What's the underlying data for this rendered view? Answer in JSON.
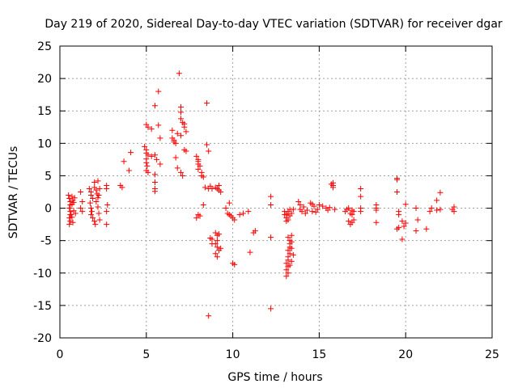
{
  "chart_data": {
    "type": "scatter",
    "title": "Day 219 of 2020, Sidereal Day-to-day VTEC variation (SDTVAR) for receiver dgar",
    "xlabel": "GPS time / hours",
    "ylabel": "SDTVAR / TECUs",
    "xlim": [
      0,
      25
    ],
    "ylim": [
      -20,
      25
    ],
    "xticks": [
      0,
      5,
      10,
      15,
      20,
      25
    ],
    "yticks": [
      -20,
      -15,
      -10,
      -5,
      0,
      5,
      10,
      15,
      20,
      25
    ],
    "grid": true,
    "marker": "+",
    "color": "#ff0000",
    "series": [
      {
        "name": "SDTVAR",
        "points": [
          [
            0.5,
            2.0
          ],
          [
            0.55,
            1.5
          ],
          [
            0.6,
            1.0
          ],
          [
            0.6,
            0.5
          ],
          [
            0.55,
            0.0
          ],
          [
            0.6,
            -0.5
          ],
          [
            0.6,
            -1.0
          ],
          [
            0.55,
            -1.5
          ],
          [
            0.6,
            -2.0
          ],
          [
            0.55,
            -2.5
          ],
          [
            0.65,
            -1.0
          ],
          [
            0.7,
            1.8
          ],
          [
            0.75,
            1.2
          ],
          [
            0.7,
            0.6
          ],
          [
            0.8,
            -0.4
          ],
          [
            0.7,
            -1.4
          ],
          [
            0.75,
            -2.2
          ],
          [
            0.8,
            0.9
          ],
          [
            0.85,
            1.6
          ],
          [
            0.9,
            -0.8
          ],
          [
            1.2,
            2.5
          ],
          [
            1.3,
            1.0
          ],
          [
            1.2,
            0.0
          ],
          [
            1.3,
            -0.5
          ],
          [
            1.7,
            3.0
          ],
          [
            1.8,
            2.5
          ],
          [
            1.8,
            2.0
          ],
          [
            1.9,
            1.5
          ],
          [
            1.75,
            0.8
          ],
          [
            1.8,
            0.0
          ],
          [
            1.85,
            -0.5
          ],
          [
            1.8,
            -1.0
          ],
          [
            1.9,
            -1.5
          ],
          [
            2.0,
            -2.0
          ],
          [
            2.05,
            -2.5
          ],
          [
            2.0,
            3.2
          ],
          [
            2.1,
            2.8
          ],
          [
            2.15,
            2.2
          ],
          [
            2.2,
            1.6
          ],
          [
            2.1,
            1.0
          ],
          [
            2.2,
            0.2
          ],
          [
            2.25,
            -0.8
          ],
          [
            2.3,
            -1.8
          ],
          [
            2.0,
            4.0
          ],
          [
            2.2,
            4.2
          ],
          [
            2.3,
            3.0
          ],
          [
            2.25,
            2.0
          ],
          [
            2.7,
            3.5
          ],
          [
            2.7,
            3.0
          ],
          [
            2.75,
            0.5
          ],
          [
            2.7,
            -0.5
          ],
          [
            2.7,
            -2.5
          ],
          [
            3.5,
            3.5
          ],
          [
            3.6,
            3.2
          ],
          [
            3.7,
            7.2
          ],
          [
            4.0,
            5.8
          ],
          [
            4.1,
            8.6
          ],
          [
            4.9,
            9.5
          ],
          [
            5.0,
            9.0
          ],
          [
            5.0,
            8.5
          ],
          [
            5.1,
            8.2
          ],
          [
            5.0,
            7.6
          ],
          [
            5.0,
            7.0
          ],
          [
            5.05,
            6.5
          ],
          [
            5.0,
            5.8
          ],
          [
            5.1,
            5.5
          ],
          [
            5.0,
            12.9
          ],
          [
            5.1,
            12.5
          ],
          [
            5.3,
            12.2
          ],
          [
            5.3,
            8.0
          ],
          [
            5.5,
            8.2
          ],
          [
            5.6,
            7.5
          ],
          [
            5.5,
            5.2
          ],
          [
            5.5,
            4.0
          ],
          [
            5.5,
            3.0
          ],
          [
            5.5,
            2.6
          ],
          [
            5.5,
            15.8
          ],
          [
            5.7,
            18.0
          ],
          [
            5.7,
            12.8
          ],
          [
            5.8,
            10.8
          ],
          [
            5.8,
            6.8
          ],
          [
            6.5,
            12.0
          ],
          [
            6.5,
            10.8
          ],
          [
            6.6,
            10.5
          ],
          [
            6.6,
            10.2
          ],
          [
            6.7,
            10.0
          ],
          [
            6.8,
            11.5
          ],
          [
            6.7,
            7.8
          ],
          [
            6.8,
            6.2
          ],
          [
            6.9,
            20.8
          ],
          [
            7.0,
            15.6
          ],
          [
            7.0,
            14.8
          ],
          [
            7.0,
            13.8
          ],
          [
            7.1,
            13.2
          ],
          [
            7.2,
            13.0
          ],
          [
            7.2,
            12.5
          ],
          [
            7.3,
            11.8
          ],
          [
            7.0,
            11.2
          ],
          [
            7.0,
            5.5
          ],
          [
            7.1,
            5.0
          ],
          [
            7.2,
            9.0
          ],
          [
            7.3,
            8.8
          ],
          [
            7.9,
            8.0
          ],
          [
            8.0,
            7.5
          ],
          [
            8.0,
            7.2
          ],
          [
            8.0,
            6.8
          ],
          [
            8.1,
            6.5
          ],
          [
            8.0,
            6.0
          ],
          [
            8.2,
            5.5
          ],
          [
            8.2,
            5.0
          ],
          [
            8.3,
            4.8
          ],
          [
            8.3,
            0.5
          ],
          [
            8.0,
            -1.0
          ],
          [
            8.1,
            -1.2
          ],
          [
            7.9,
            -1.5
          ],
          [
            8.5,
            16.2
          ],
          [
            8.5,
            9.8
          ],
          [
            8.6,
            8.8
          ],
          [
            8.4,
            3.2
          ],
          [
            8.6,
            3.0
          ],
          [
            8.7,
            3.4
          ],
          [
            8.8,
            3.0
          ],
          [
            8.6,
            -16.6
          ],
          [
            8.7,
            -4.6
          ],
          [
            8.8,
            -4.8
          ],
          [
            8.8,
            -5.5
          ],
          [
            9.0,
            3.2
          ],
          [
            9.1,
            3.0
          ],
          [
            9.2,
            2.8
          ],
          [
            9.2,
            3.5
          ],
          [
            9.3,
            2.5
          ],
          [
            9.0,
            -3.8
          ],
          [
            9.1,
            -4.2
          ],
          [
            9.1,
            -5.0
          ],
          [
            9.0,
            -5.5
          ],
          [
            9.1,
            -6.0
          ],
          [
            9.2,
            -6.5
          ],
          [
            9.0,
            -7.0
          ],
          [
            9.1,
            -7.5
          ],
          [
            9.2,
            -4.0
          ],
          [
            9.3,
            -6.2
          ],
          [
            9.6,
            0.0
          ],
          [
            9.7,
            -0.8
          ],
          [
            9.8,
            -1.0
          ],
          [
            9.9,
            -1.2
          ],
          [
            10.0,
            -1.5
          ],
          [
            10.1,
            -1.8
          ],
          [
            9.8,
            0.8
          ],
          [
            10.0,
            -8.5
          ],
          [
            10.1,
            -8.7
          ],
          [
            10.4,
            -1.0
          ],
          [
            10.6,
            -0.8
          ],
          [
            10.9,
            -0.5
          ],
          [
            11.0,
            -6.8
          ],
          [
            11.2,
            -3.8
          ],
          [
            11.3,
            -3.5
          ],
          [
            12.2,
            1.8
          ],
          [
            12.2,
            0.5
          ],
          [
            12.2,
            -4.5
          ],
          [
            12.2,
            -15.5
          ],
          [
            13.0,
            -0.5
          ],
          [
            13.0,
            -1.0
          ],
          [
            13.1,
            -1.5
          ],
          [
            13.1,
            -1.0
          ],
          [
            13.2,
            -0.8
          ],
          [
            13.1,
            -2.0
          ],
          [
            13.2,
            -0.5
          ],
          [
            13.3,
            -1.2
          ],
          [
            13.4,
            -0.8
          ],
          [
            13.5,
            -0.2
          ],
          [
            13.3,
            -0.2
          ],
          [
            13.2,
            -1.8
          ],
          [
            13.2,
            -4.5
          ],
          [
            13.3,
            -5.0
          ],
          [
            13.3,
            -5.5
          ],
          [
            13.3,
            -6.0
          ],
          [
            13.2,
            -6.5
          ],
          [
            13.3,
            -7.0
          ],
          [
            13.2,
            -7.5
          ],
          [
            13.2,
            -8.0
          ],
          [
            13.1,
            -8.5
          ],
          [
            13.2,
            -9.0
          ],
          [
            13.1,
            -9.5
          ],
          [
            13.2,
            -10.0
          ],
          [
            13.1,
            -10.5
          ],
          [
            13.4,
            -4.2
          ],
          [
            13.4,
            -5.2
          ],
          [
            13.4,
            -6.2
          ],
          [
            13.5,
            -7.2
          ],
          [
            13.4,
            -8.2
          ],
          [
            13.3,
            -8.8
          ],
          [
            13.8,
            1.0
          ],
          [
            13.9,
            0.5
          ],
          [
            13.9,
            -0.2
          ],
          [
            14.0,
            -0.5
          ],
          [
            14.1,
            0.2
          ],
          [
            14.2,
            -0.8
          ],
          [
            14.3,
            -0.3
          ],
          [
            14.5,
            0.8
          ],
          [
            14.6,
            -0.5
          ],
          [
            14.7,
            0.3
          ],
          [
            14.8,
            -0.6
          ],
          [
            14.6,
            0.6
          ],
          [
            14.9,
            -0.2
          ],
          [
            15.0,
            0.5
          ],
          [
            15.2,
            0.3
          ],
          [
            15.4,
            0.0
          ],
          [
            15.5,
            -0.3
          ],
          [
            15.6,
            0.1
          ],
          [
            15.7,
            3.7
          ],
          [
            15.8,
            3.5
          ],
          [
            15.8,
            3.2
          ],
          [
            15.8,
            3.9
          ],
          [
            15.9,
            -0.2
          ],
          [
            16.5,
            -0.5
          ],
          [
            16.6,
            -0.2
          ],
          [
            16.7,
            0.0
          ],
          [
            16.8,
            -0.8
          ],
          [
            16.9,
            -1.0
          ],
          [
            17.0,
            -0.5
          ],
          [
            16.7,
            -2.0
          ],
          [
            16.8,
            -2.5
          ],
          [
            16.9,
            -2.2
          ],
          [
            17.0,
            -1.8
          ],
          [
            16.9,
            -0.3
          ],
          [
            17.4,
            3.0
          ],
          [
            17.4,
            1.8
          ],
          [
            17.4,
            0.0
          ],
          [
            17.4,
            -0.5
          ],
          [
            18.3,
            0.5
          ],
          [
            18.3,
            0.0
          ],
          [
            18.3,
            -0.3
          ],
          [
            18.3,
            -2.2
          ],
          [
            19.5,
            4.6
          ],
          [
            19.5,
            4.4
          ],
          [
            19.5,
            2.5
          ],
          [
            19.6,
            -0.5
          ],
          [
            19.6,
            -1.0
          ],
          [
            19.5,
            -3.2
          ],
          [
            19.6,
            -3.0
          ],
          [
            19.8,
            -2.0
          ],
          [
            19.8,
            -4.8
          ],
          [
            19.9,
            -2.8
          ],
          [
            20.0,
            -2.3
          ],
          [
            20.0,
            0.6
          ],
          [
            20.6,
            0.0
          ],
          [
            20.7,
            -1.8
          ],
          [
            20.6,
            -3.5
          ],
          [
            21.2,
            -3.2
          ],
          [
            21.4,
            -0.5
          ],
          [
            21.5,
            0.0
          ],
          [
            21.8,
            -0.3
          ],
          [
            21.8,
            1.2
          ],
          [
            22.0,
            2.4
          ],
          [
            22.0,
            -0.2
          ],
          [
            22.7,
            -0.2
          ],
          [
            22.8,
            0.2
          ],
          [
            22.8,
            -0.5
          ]
        ]
      }
    ]
  }
}
